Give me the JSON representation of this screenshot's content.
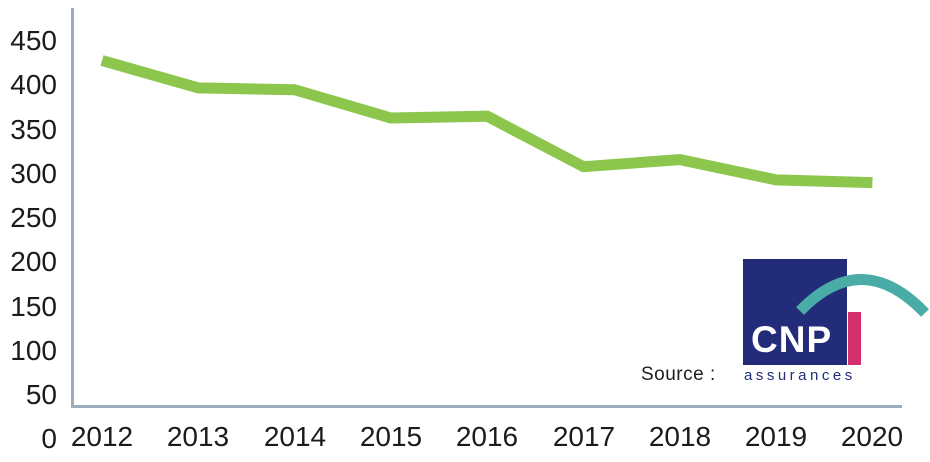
{
  "chart_data": {
    "type": "line",
    "x": [
      2012,
      2013,
      2014,
      2015,
      2016,
      2017,
      2018,
      2019,
      2020
    ],
    "series": [
      {
        "name": "value",
        "values": [
          428,
          397,
          395,
          363,
          365,
          308,
          316,
          293,
          290
        ]
      }
    ],
    "title": "",
    "xlabel": "",
    "ylabel": "",
    "ylim": [
      0,
      475
    ],
    "yticks": [
      450,
      400,
      350,
      300,
      250,
      200,
      150,
      100,
      50,
      0
    ],
    "grid": false,
    "legend": false,
    "line_color": "#8CC64C"
  },
  "source": {
    "label": "Source :"
  },
  "logo": {
    "name": "CNP",
    "subtitle": "assurances"
  },
  "colors": {
    "line_green": "#8CC64C",
    "navy": "#232C78",
    "teal": "#4AACA6",
    "pink": "#D62F6E",
    "axis": "#9FADBA",
    "text": "#1B1B1B"
  }
}
